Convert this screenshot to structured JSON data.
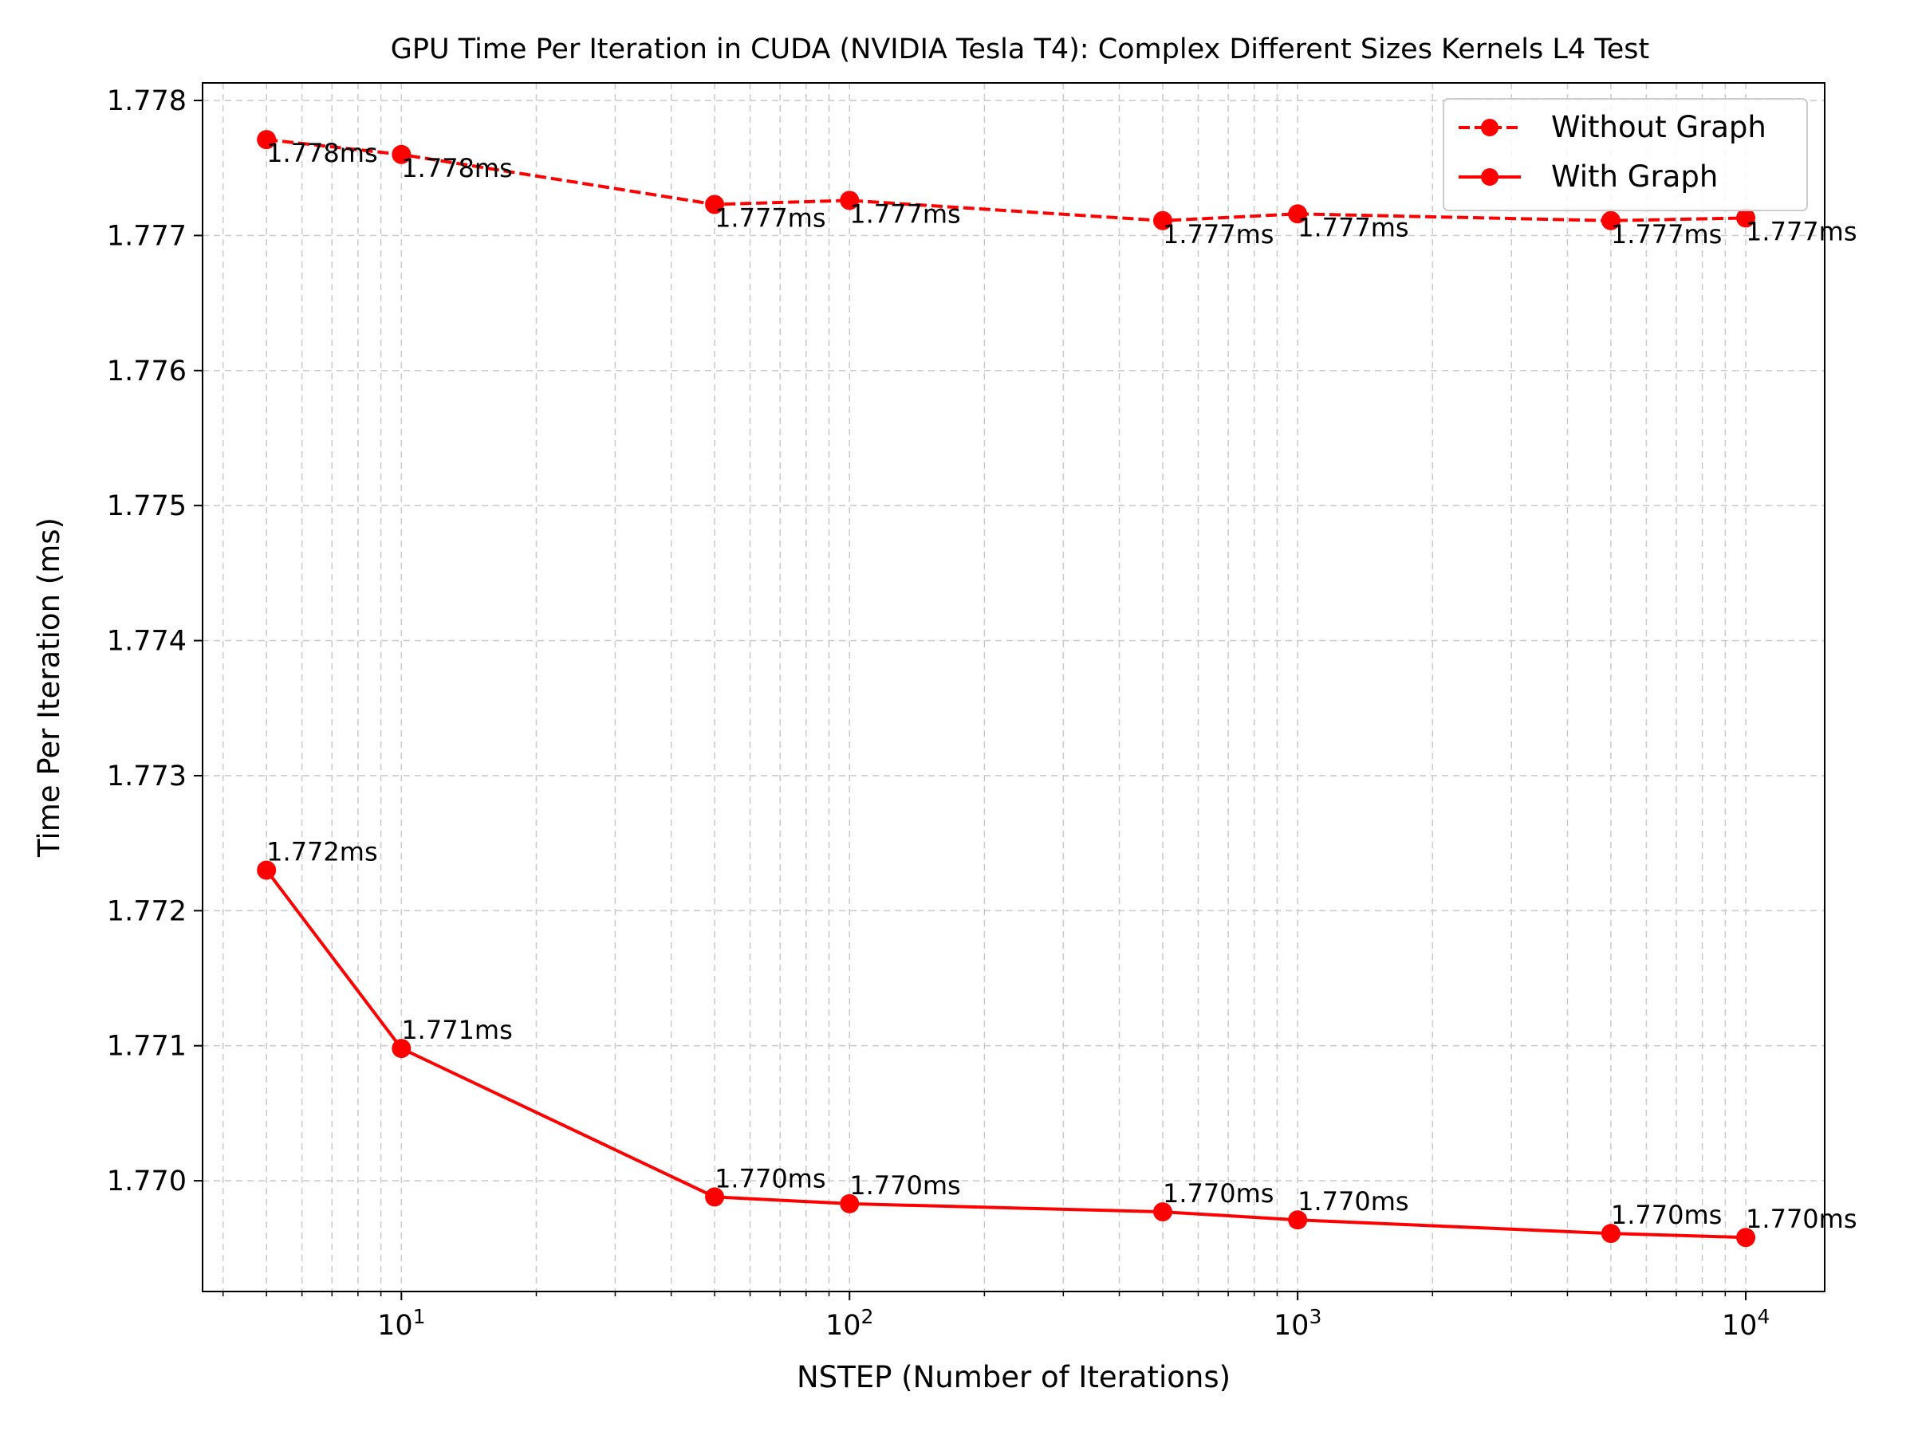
{
  "chart_data": {
    "type": "line",
    "title": "GPU Time Per Iteration in CUDA (NVIDIA Tesla T4): Complex Different Sizes Kernels L4 Test",
    "xlabel": "NSTEP (Number of Iterations)",
    "ylabel": "Time Per Iteration (ms)",
    "x_scale": "log",
    "xlim": [
      3.6,
      15000
    ],
    "ylim": [
      1.76918,
      1.77813
    ],
    "x_ticks": [
      {
        "value": 10,
        "base": "10",
        "exp": "1"
      },
      {
        "value": 100,
        "base": "10",
        "exp": "2"
      },
      {
        "value": 1000,
        "base": "10",
        "exp": "3"
      },
      {
        "value": 10000,
        "base": "10",
        "exp": "4"
      }
    ],
    "y_ticks": [
      {
        "value": 1.77,
        "label": "1.770"
      },
      {
        "value": 1.771,
        "label": "1.771"
      },
      {
        "value": 1.772,
        "label": "1.772"
      },
      {
        "value": 1.773,
        "label": "1.773"
      },
      {
        "value": 1.774,
        "label": "1.774"
      },
      {
        "value": 1.775,
        "label": "1.775"
      },
      {
        "value": 1.776,
        "label": "1.776"
      },
      {
        "value": 1.777,
        "label": "1.777"
      },
      {
        "value": 1.778,
        "label": "1.778"
      }
    ],
    "grid": true,
    "legend_position": "top-right",
    "x": [
      5,
      10,
      50,
      100,
      500,
      1000,
      5000,
      10000
    ],
    "series": [
      {
        "name": "Without Graph",
        "color": "#ff0000",
        "linestyle": "dashed",
        "marker": "circle",
        "label_position": "below",
        "values": [
          1.77771,
          1.7776,
          1.77723,
          1.77726,
          1.77711,
          1.77716,
          1.77711,
          1.77713
        ],
        "labels": [
          "1.778ms",
          "1.778ms",
          "1.777ms",
          "1.777ms",
          "1.777ms",
          "1.777ms",
          "1.777ms",
          "1.777ms"
        ]
      },
      {
        "name": "With Graph",
        "color": "#ff0000",
        "linestyle": "solid",
        "marker": "circle",
        "label_position": "above",
        "values": [
          1.7723,
          1.77098,
          1.76988,
          1.76983,
          1.76977,
          1.76971,
          1.76961,
          1.76958
        ],
        "labels": [
          "1.772ms",
          "1.771ms",
          "1.770ms",
          "1.770ms",
          "1.770ms",
          "1.770ms",
          "1.770ms",
          "1.770ms"
        ]
      }
    ]
  }
}
